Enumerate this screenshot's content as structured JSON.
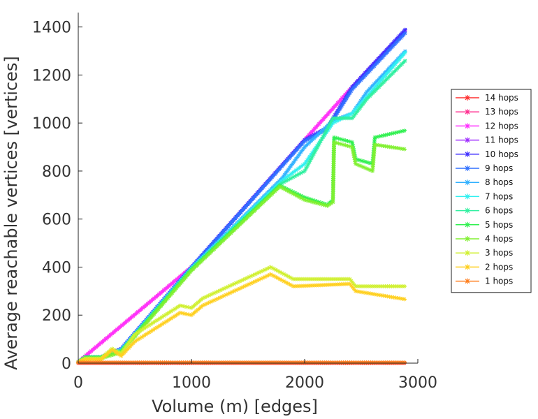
{
  "chart_data": {
    "type": "line",
    "xlabel": "Volume (m) [edges]",
    "ylabel": "Average reachable vertices [vertices]",
    "xlim": [
      0,
      3000
    ],
    "ylim": [
      0,
      1460
    ],
    "xticks": [
      0,
      1000,
      2000,
      3000
    ],
    "yticks": [
      0,
      200,
      400,
      600,
      800,
      1000,
      1200,
      1400
    ],
    "xtick_labels": [
      "0",
      "1000",
      "2000",
      "3000"
    ],
    "ytick_labels": [
      "0",
      "200",
      "400",
      "600",
      "800",
      "1000",
      "1200",
      "1400"
    ],
    "grid": false,
    "legend_position": "right",
    "marker": "asterisk",
    "series": [
      {
        "name": "14 hops",
        "color": "#ff3030",
        "x": [
          0,
          2900
        ],
        "y": [
          0,
          0
        ]
      },
      {
        "name": "13 hops",
        "color": "#ff3090",
        "x": [
          0,
          1000,
          2000,
          2420,
          2900
        ],
        "y": [
          5,
          400,
          930,
          1150,
          1390
        ]
      },
      {
        "name": "12 hops",
        "color": "#ff30ff",
        "x": [
          0,
          1000,
          2000,
          2420,
          2900
        ],
        "y": [
          5,
          400,
          930,
          1150,
          1390
        ]
      },
      {
        "name": "11 hops",
        "color": "#a030ff",
        "x": [
          0,
          60,
          200,
          380,
          1000,
          2000,
          2200,
          2420,
          2900
        ],
        "y": [
          5,
          25,
          25,
          60,
          400,
          930,
          980,
          1150,
          1390
        ]
      },
      {
        "name": "10 hops",
        "color": "#4030ff",
        "x": [
          0,
          60,
          200,
          380,
          1000,
          2000,
          2200,
          2420,
          2900
        ],
        "y": [
          5,
          25,
          25,
          60,
          400,
          930,
          980,
          1150,
          1395
        ]
      },
      {
        "name": "9 hops",
        "color": "#3070ff",
        "x": [
          0,
          60,
          200,
          380,
          1000,
          2000,
          2200,
          2420,
          2900
        ],
        "y": [
          5,
          25,
          25,
          60,
          400,
          925,
          975,
          1140,
          1380
        ]
      },
      {
        "name": "8 hops",
        "color": "#30b0ff",
        "x": [
          0,
          60,
          200,
          380,
          1000,
          1800,
          2000,
          2250,
          2420,
          2550,
          2900
        ],
        "y": [
          5,
          25,
          25,
          55,
          395,
          770,
          900,
          1010,
          1040,
          1130,
          1305
        ]
      },
      {
        "name": "7 hops",
        "color": "#30f0f0",
        "x": [
          0,
          60,
          200,
          380,
          1000,
          1800,
          2000,
          2250,
          2420,
          2550,
          2900
        ],
        "y": [
          5,
          25,
          25,
          55,
          395,
          760,
          830,
          1000,
          1040,
          1110,
          1300
        ]
      },
      {
        "name": "6 hops",
        "color": "#30f0a0",
        "x": [
          0,
          60,
          200,
          380,
          1000,
          1800,
          2000,
          2250,
          2420,
          2550,
          2900
        ],
        "y": [
          5,
          25,
          25,
          50,
          390,
          750,
          800,
          1020,
          1020,
          1100,
          1265
        ]
      },
      {
        "name": "5 hops",
        "color": "#30f050",
        "x": [
          0,
          60,
          200,
          380,
          1000,
          1780,
          2000,
          2200,
          2250,
          2260,
          2420,
          2450,
          2600,
          2620,
          2900
        ],
        "y": [
          5,
          25,
          25,
          50,
          390,
          740,
          690,
          660,
          680,
          940,
          920,
          850,
          830,
          940,
          970
        ]
      },
      {
        "name": "4 hops",
        "color": "#80f030",
        "x": [
          0,
          60,
          200,
          380,
          1000,
          1780,
          2000,
          2200,
          2250,
          2260,
          2420,
          2450,
          2600,
          2620,
          2900
        ],
        "y": [
          5,
          20,
          20,
          45,
          385,
          735,
          680,
          655,
          670,
          920,
          900,
          830,
          800,
          910,
          890
        ]
      },
      {
        "name": "3 hops",
        "color": "#d0f030",
        "x": [
          0,
          60,
          200,
          300,
          380,
          500,
          900,
          1000,
          1100,
          1700,
          1900,
          2400,
          2450,
          2900
        ],
        "y": [
          5,
          20,
          20,
          60,
          40,
          120,
          240,
          230,
          270,
          400,
          350,
          350,
          320,
          320
        ]
      },
      {
        "name": "2 hops",
        "color": "#ffd020",
        "x": [
          0,
          60,
          200,
          300,
          380,
          500,
          900,
          1000,
          1100,
          1700,
          1900,
          2400,
          2450,
          2900
        ],
        "y": [
          5,
          15,
          15,
          55,
          30,
          90,
          210,
          200,
          240,
          370,
          320,
          330,
          300,
          265
        ]
      },
      {
        "name": "1 hops",
        "color": "#ff8020",
        "x": [
          0,
          2900
        ],
        "y": [
          3,
          3
        ]
      }
    ]
  }
}
